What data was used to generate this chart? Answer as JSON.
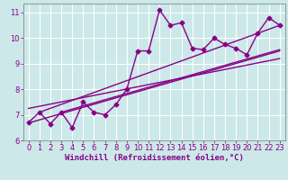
{
  "x": [
    0,
    1,
    2,
    3,
    4,
    5,
    6,
    7,
    8,
    9,
    10,
    11,
    12,
    13,
    14,
    15,
    16,
    17,
    18,
    19,
    20,
    21,
    22,
    23
  ],
  "y_main": [
    6.7,
    7.1,
    6.65,
    7.1,
    6.5,
    7.5,
    7.1,
    7.0,
    7.4,
    8.0,
    9.5,
    9.5,
    11.1,
    10.5,
    10.6,
    9.6,
    9.55,
    10.0,
    9.75,
    9.6,
    9.35,
    10.2,
    10.8,
    10.5
  ],
  "trend_lines": [
    {
      "x_start": 0,
      "y_start": 6.68,
      "x_end": 23,
      "y_end": 9.5
    },
    {
      "x_start": 0,
      "y_start": 7.25,
      "x_end": 23,
      "y_end": 9.2
    },
    {
      "x_start": 3,
      "y_start": 7.1,
      "x_end": 23,
      "y_end": 9.55
    },
    {
      "x_start": 1,
      "y_start": 7.1,
      "x_end": 23,
      "y_end": 10.5
    }
  ],
  "color": "#880088",
  "bg_color": "#cce8e8",
  "grid_color": "#b8d8d8",
  "xlabel": "Windchill (Refroidissement éolien,°C)",
  "xlim": [
    -0.5,
    23.5
  ],
  "ylim": [
    6.0,
    11.35
  ],
  "yticks": [
    6,
    7,
    8,
    9,
    10,
    11
  ],
  "xticks": [
    0,
    1,
    2,
    3,
    4,
    5,
    6,
    7,
    8,
    9,
    10,
    11,
    12,
    13,
    14,
    15,
    16,
    17,
    18,
    19,
    20,
    21,
    22,
    23
  ],
  "marker": "D",
  "markersize": 2.5,
  "linewidth": 1.0,
  "xlabel_fontsize": 6.5,
  "tick_fontsize": 6.0
}
